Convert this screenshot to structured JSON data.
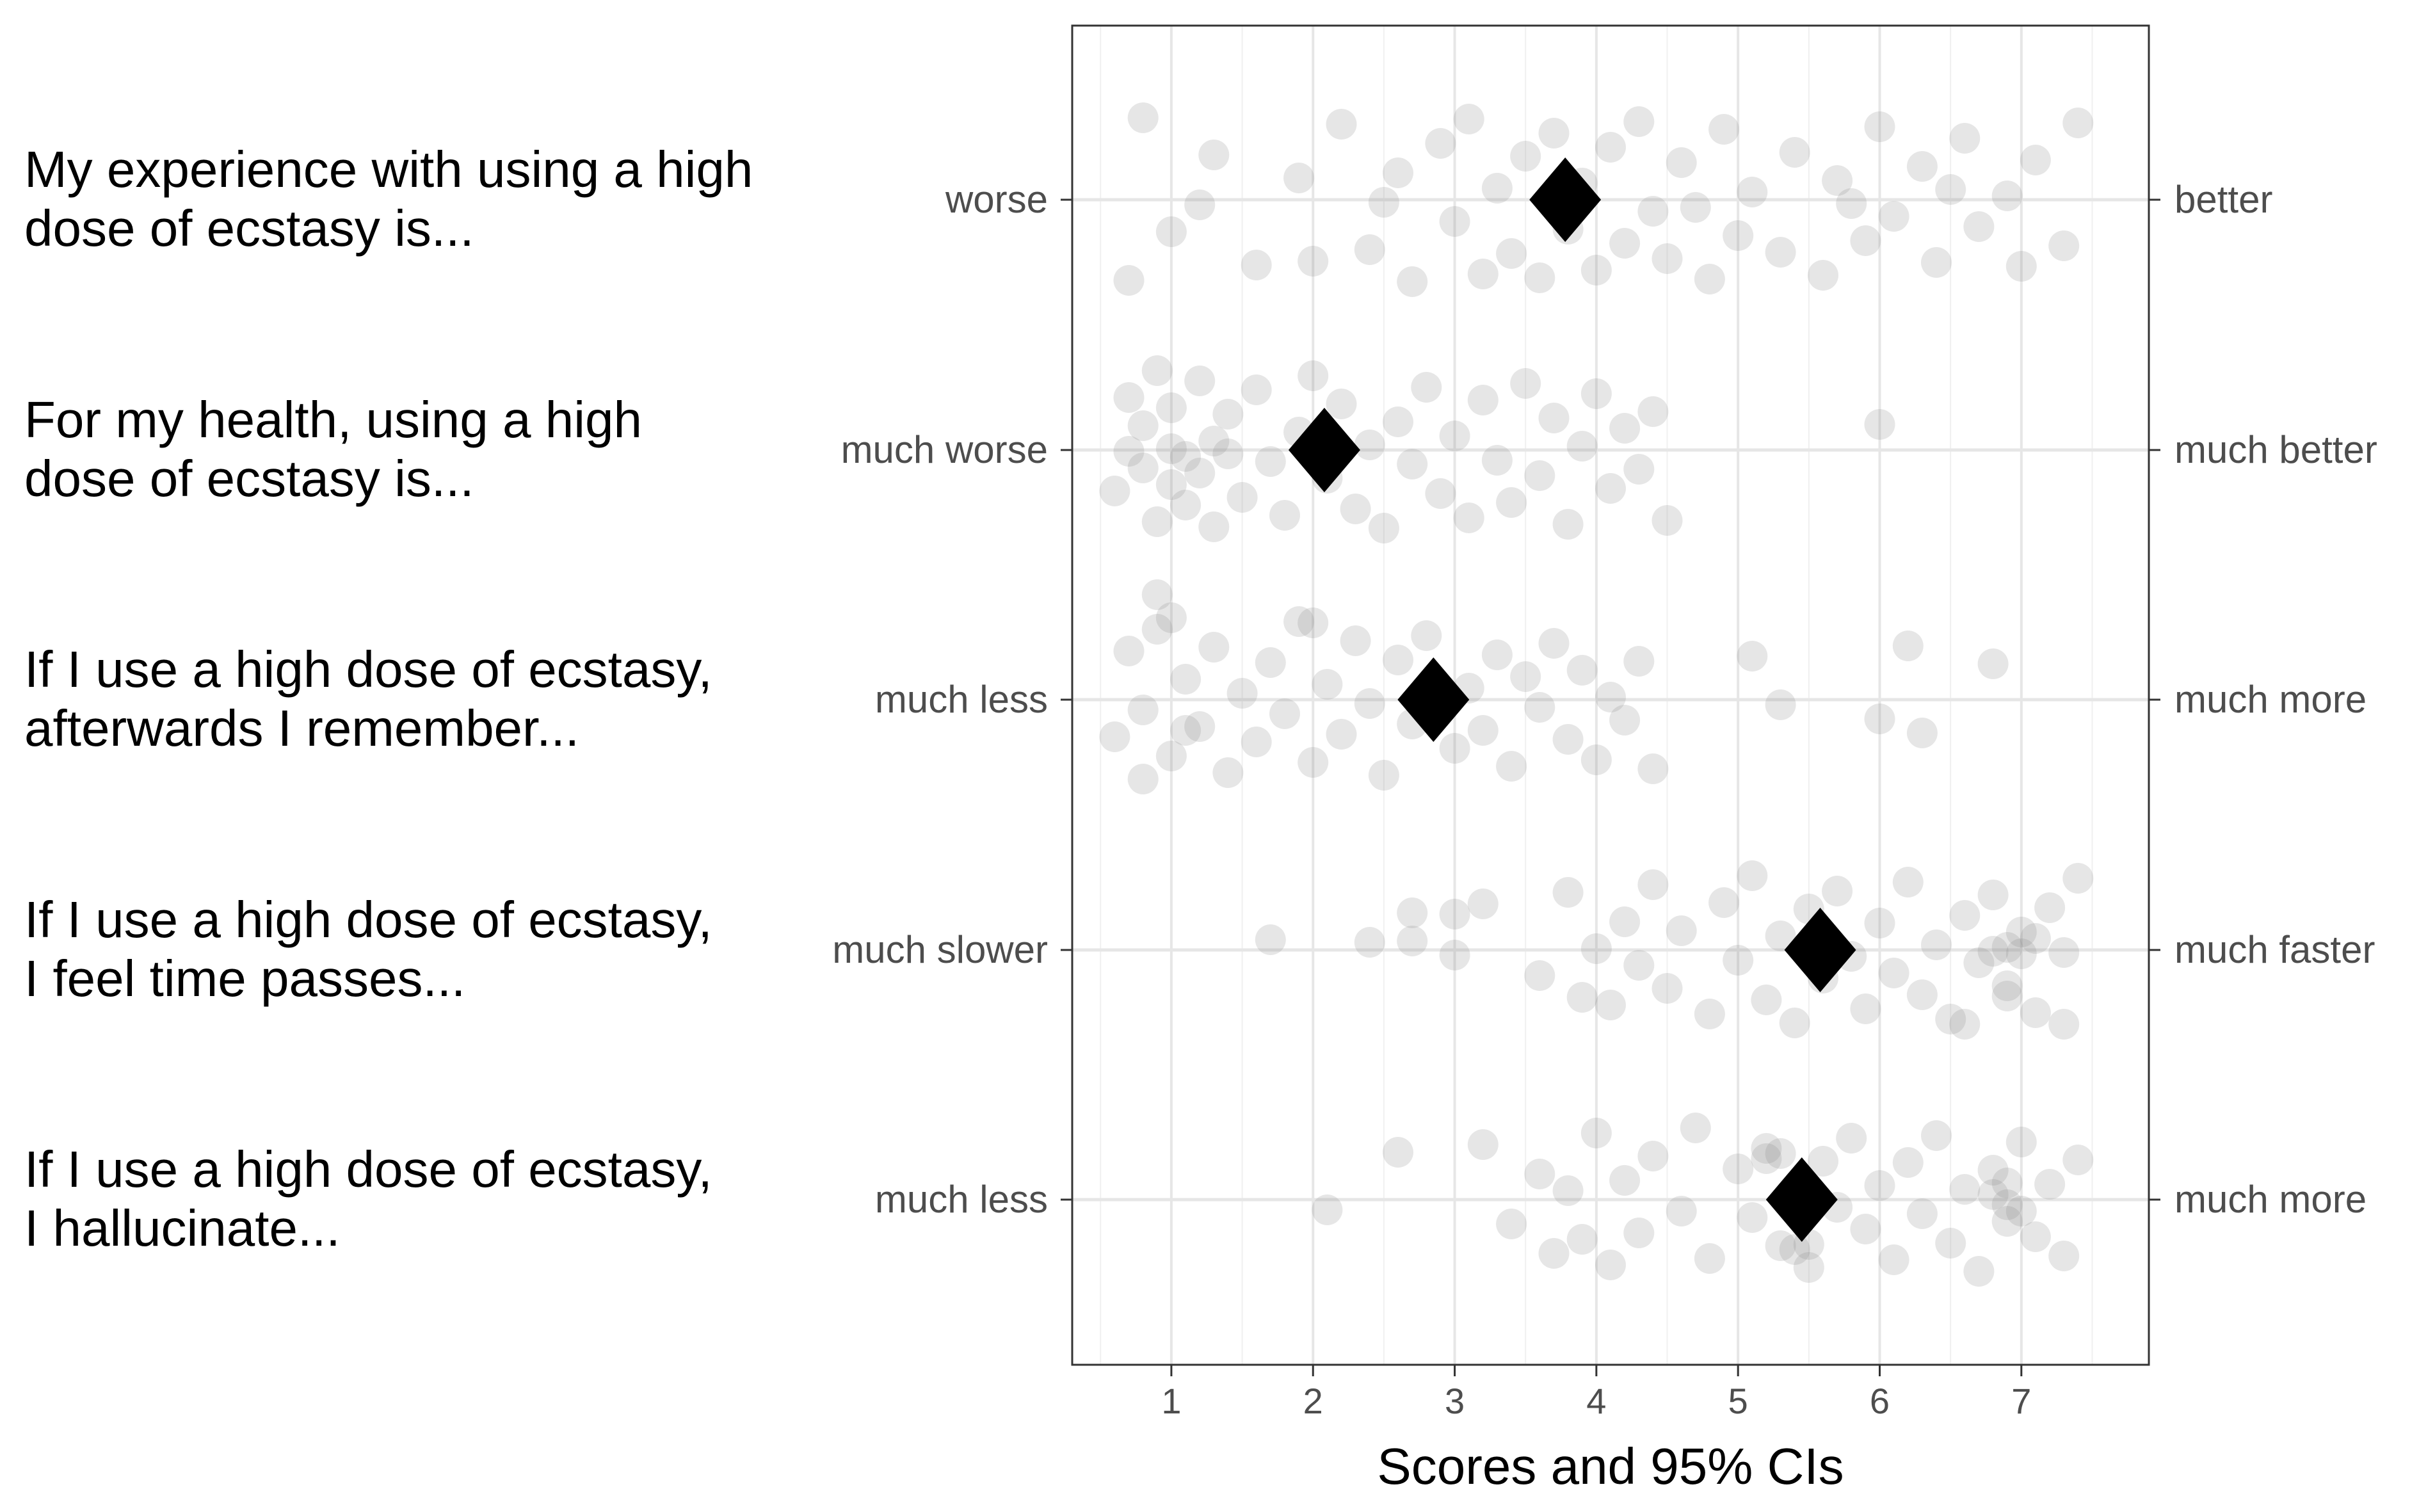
{
  "chart_data": {
    "type": "scatter",
    "xlabel": "Scores and 95% CIs",
    "xlim": [
      0.3,
      7.9
    ],
    "x_ticks": [
      1,
      2,
      3,
      4,
      5,
      6,
      7
    ],
    "grid": true,
    "point_color": "#808080",
    "diamond_color": "#000000",
    "rows": [
      {
        "question": [
          "My experience with using a high",
          "dose of ecstasy is..."
        ],
        "left_anchor": "worse",
        "right_anchor": "better",
        "mean": 3.78,
        "spread": "wide",
        "points": [
          [
            0.7,
            6.3
          ],
          [
            0.8,
            -6.4
          ],
          [
            1.0,
            2.5
          ],
          [
            1.3,
            -3.5
          ],
          [
            1.6,
            5.1
          ],
          [
            1.9,
            -1.7
          ],
          [
            2.0,
            4.8
          ],
          [
            2.2,
            -5.9
          ],
          [
            2.4,
            3.9
          ],
          [
            2.6,
            -2.1
          ],
          [
            2.7,
            6.4
          ],
          [
            2.9,
            -4.4
          ],
          [
            3.0,
            1.7
          ],
          [
            3.1,
            -6.3
          ],
          [
            3.2,
            5.8
          ],
          [
            3.3,
            -0.9
          ],
          [
            3.4,
            4.2
          ],
          [
            3.5,
            -3.4
          ],
          [
            3.6,
            6.1
          ],
          [
            3.7,
            -5.2
          ],
          [
            3.8,
            2.3
          ],
          [
            3.9,
            -1.3
          ],
          [
            4.0,
            5.5
          ],
          [
            4.1,
            -4.1
          ],
          [
            4.2,
            3.4
          ],
          [
            4.3,
            -6.1
          ],
          [
            4.4,
            0.9
          ],
          [
            4.5,
            4.6
          ],
          [
            4.6,
            -2.9
          ],
          [
            4.8,
            6.2
          ],
          [
            4.9,
            -5.5
          ],
          [
            5.0,
            2.8
          ],
          [
            5.1,
            -0.6
          ],
          [
            5.3,
            4.1
          ],
          [
            5.4,
            -3.7
          ],
          [
            5.6,
            5.9
          ],
          [
            5.7,
            -1.5
          ],
          [
            5.9,
            3.2
          ],
          [
            6.0,
            -5.7
          ],
          [
            6.1,
            1.3
          ],
          [
            6.3,
            -2.6
          ],
          [
            6.4,
            4.9
          ],
          [
            6.6,
            -4.8
          ],
          [
            6.7,
            2.1
          ],
          [
            6.9,
            -0.3
          ],
          [
            7.0,
            5.2
          ],
          [
            7.1,
            -3.1
          ],
          [
            7.3,
            3.6
          ],
          [
            7.4,
            -6.0
          ],
          [
            1.2,
            0.4
          ],
          [
            2.5,
            0.2
          ],
          [
            4.7,
            0.6
          ],
          [
            5.8,
            0.3
          ],
          [
            6.5,
            -0.8
          ]
        ]
      },
      {
        "question": [
          "For my health, using a high",
          "dose of ecstasy is..."
        ],
        "left_anchor": "much worse",
        "right_anchor": "much better",
        "mean": 2.08,
        "spread": "low",
        "points": [
          [
            0.6,
            3.2
          ],
          [
            0.7,
            -4.1
          ],
          [
            0.8,
            1.4
          ],
          [
            0.8,
            -1.9
          ],
          [
            0.9,
            5.6
          ],
          [
            0.9,
            -6.2
          ],
          [
            1.0,
            2.7
          ],
          [
            1.0,
            -3.3
          ],
          [
            1.1,
            0.5
          ],
          [
            1.1,
            4.3
          ],
          [
            1.2,
            -5.4
          ],
          [
            1.2,
            1.8
          ],
          [
            1.3,
            -0.7
          ],
          [
            1.3,
            6.0
          ],
          [
            1.4,
            -2.8
          ],
          [
            1.5,
            3.7
          ],
          [
            1.6,
            -4.7
          ],
          [
            1.7,
            0.9
          ],
          [
            1.8,
            5.1
          ],
          [
            1.9,
            -1.4
          ],
          [
            2.0,
            -5.8
          ],
          [
            2.1,
            2.2
          ],
          [
            2.2,
            -3.6
          ],
          [
            2.3,
            4.6
          ],
          [
            2.4,
            -0.4
          ],
          [
            2.5,
            6.1
          ],
          [
            2.6,
            -2.2
          ],
          [
            2.7,
            1.1
          ],
          [
            2.8,
            -4.9
          ],
          [
            2.9,
            3.4
          ],
          [
            3.0,
            -1.1
          ],
          [
            3.1,
            5.3
          ],
          [
            3.2,
            -3.9
          ],
          [
            3.3,
            0.8
          ],
          [
            3.4,
            4.1
          ],
          [
            3.5,
            -5.2
          ],
          [
            3.6,
            2.0
          ],
          [
            3.7,
            -2.5
          ],
          [
            3.8,
            5.8
          ],
          [
            3.9,
            -0.3
          ],
          [
            4.0,
            -4.4
          ],
          [
            4.1,
            3.0
          ],
          [
            4.2,
            -1.7
          ],
          [
            4.3,
            1.5
          ],
          [
            4.4,
            -3.0
          ],
          [
            4.5,
            5.5
          ],
          [
            0.7,
            0.1
          ],
          [
            1.0,
            -0.1
          ],
          [
            1.4,
            0.3
          ],
          [
            6.0,
            -2.0
          ]
        ]
      },
      {
        "question": [
          "If I use a high dose of ecstasy,",
          "afterwards I remember..."
        ],
        "left_anchor": "much less",
        "right_anchor": "much more",
        "mean": 2.85,
        "spread": "low-mid",
        "points": [
          [
            0.6,
            2.9
          ],
          [
            0.7,
            -3.8
          ],
          [
            0.8,
            0.8
          ],
          [
            0.9,
            -5.5
          ],
          [
            1.0,
            4.4
          ],
          [
            1.1,
            -1.6
          ],
          [
            1.2,
            2.1
          ],
          [
            1.3,
            -4.1
          ],
          [
            1.4,
            5.7
          ],
          [
            1.5,
            -0.5
          ],
          [
            1.6,
            3.3
          ],
          [
            1.7,
            -2.9
          ],
          [
            1.8,
            1.1
          ],
          [
            1.9,
            -6.1
          ],
          [
            2.0,
            4.9
          ],
          [
            2.1,
            -1.2
          ],
          [
            2.2,
            2.7
          ],
          [
            2.3,
            -4.6
          ],
          [
            2.4,
            0.3
          ],
          [
            2.5,
            5.9
          ],
          [
            2.6,
            -3.1
          ],
          [
            2.7,
            1.9
          ],
          [
            2.8,
            -5.0
          ],
          [
            3.0,
            3.8
          ],
          [
            3.1,
            -0.9
          ],
          [
            3.2,
            2.4
          ],
          [
            3.3,
            -3.5
          ],
          [
            3.4,
            5.2
          ],
          [
            3.5,
            -1.8
          ],
          [
            3.6,
            0.6
          ],
          [
            3.7,
            -4.4
          ],
          [
            3.8,
            3.1
          ],
          [
            3.9,
            -2.3
          ],
          [
            4.0,
            4.7
          ],
          [
            4.1,
            -0.2
          ],
          [
            4.2,
            1.6
          ],
          [
            4.3,
            -3.0
          ],
          [
            4.4,
            5.4
          ],
          [
            1.0,
            -6.4
          ],
          [
            0.9,
            -8.2
          ],
          [
            0.8,
            6.2
          ],
          [
            2.0,
            -6.0
          ],
          [
            5.1,
            -3.4
          ],
          [
            5.3,
            0.4
          ],
          [
            6.0,
            1.5
          ],
          [
            6.2,
            -4.2
          ],
          [
            6.3,
            2.6
          ],
          [
            6.8,
            -2.8
          ],
          [
            1.1,
            2.4
          ]
        ]
      },
      {
        "question": [
          "If I use a high dose of ecstasy,",
          "I feel time passes..."
        ],
        "left_anchor": "much slower",
        "right_anchor": "much faster",
        "mean": 5.58,
        "spread": "high",
        "points": [
          [
            1.7,
            -0.8
          ],
          [
            2.4,
            -0.6
          ],
          [
            2.7,
            -0.7
          ],
          [
            2.7,
            -2.9
          ],
          [
            3.0,
            -2.8
          ],
          [
            3.0,
            0.4
          ],
          [
            3.2,
            -3.6
          ],
          [
            3.6,
            2.0
          ],
          [
            3.8,
            -4.5
          ],
          [
            3.9,
            3.7
          ],
          [
            4.0,
            -0.1
          ],
          [
            4.1,
            4.3
          ],
          [
            4.2,
            -2.2
          ],
          [
            4.3,
            1.2
          ],
          [
            4.4,
            -5.1
          ],
          [
            4.5,
            3.0
          ],
          [
            4.6,
            -1.5
          ],
          [
            4.8,
            5.0
          ],
          [
            4.9,
            -3.7
          ],
          [
            5.0,
            0.8
          ],
          [
            5.1,
            -5.8
          ],
          [
            5.2,
            3.9
          ],
          [
            5.3,
            -1.1
          ],
          [
            5.4,
            5.7
          ],
          [
            5.5,
            -3.2
          ],
          [
            5.6,
            2.2
          ],
          [
            5.7,
            -4.6
          ],
          [
            5.8,
            0.5
          ],
          [
            5.9,
            4.6
          ],
          [
            6.0,
            -2.1
          ],
          [
            6.1,
            1.8
          ],
          [
            6.2,
            -5.3
          ],
          [
            6.3,
            3.5
          ],
          [
            6.4,
            -0.4
          ],
          [
            6.5,
            5.4
          ],
          [
            6.6,
            -2.7
          ],
          [
            6.7,
            1.0
          ],
          [
            6.8,
            -4.3
          ],
          [
            6.9,
            2.8
          ],
          [
            7.0,
            -1.4
          ],
          [
            7.1,
            4.9
          ],
          [
            7.2,
            -3.3
          ],
          [
            7.3,
            0.2
          ],
          [
            7.4,
            -5.6
          ],
          [
            6.8,
            0.1
          ],
          [
            6.9,
            -0.2
          ],
          [
            7.0,
            0.3
          ],
          [
            7.1,
            -0.9
          ],
          [
            6.6,
            5.8
          ],
          [
            7.3,
            5.8
          ],
          [
            6.9,
            3.6
          ]
        ]
      },
      {
        "question": [
          "If I use a high dose of ecstasy,",
          "I hallucinate..."
        ],
        "left_anchor": "much less",
        "right_anchor": "much more",
        "mean": 5.45,
        "spread": "high",
        "points": [
          [
            2.1,
            0.8
          ],
          [
            2.6,
            -3.7
          ],
          [
            3.2,
            -4.3
          ],
          [
            3.4,
            1.9
          ],
          [
            3.6,
            -2.0
          ],
          [
            3.7,
            4.2
          ],
          [
            3.8,
            -0.7
          ],
          [
            3.9,
            3.1
          ],
          [
            4.0,
            -5.2
          ],
          [
            4.1,
            5.1
          ],
          [
            4.2,
            -1.5
          ],
          [
            4.3,
            2.6
          ],
          [
            4.4,
            -3.4
          ],
          [
            4.6,
            0.9
          ],
          [
            4.7,
            -5.6
          ],
          [
            4.8,
            4.6
          ],
          [
            5.0,
            -2.4
          ],
          [
            5.1,
            1.4
          ],
          [
            5.2,
            -4.0
          ],
          [
            5.3,
            3.6
          ],
          [
            5.4,
            -0.3
          ],
          [
            5.5,
            5.3
          ],
          [
            5.6,
            -3.0
          ],
          [
            5.7,
            0.6
          ],
          [
            5.8,
            -4.8
          ],
          [
            5.9,
            2.3
          ],
          [
            6.0,
            -1.1
          ],
          [
            6.1,
            4.7
          ],
          [
            6.2,
            -2.9
          ],
          [
            6.3,
            1.1
          ],
          [
            6.4,
            -5.0
          ],
          [
            6.5,
            3.4
          ],
          [
            6.6,
            -0.8
          ],
          [
            6.7,
            5.6
          ],
          [
            6.8,
            -2.3
          ],
          [
            6.9,
            0.4
          ],
          [
            7.0,
            -4.5
          ],
          [
            7.1,
            2.9
          ],
          [
            7.2,
            -1.2
          ],
          [
            7.3,
            4.4
          ],
          [
            7.4,
            -3.1
          ],
          [
            6.9,
            1.7
          ],
          [
            7.0,
            0.9
          ],
          [
            6.8,
            -0.4
          ],
          [
            6.9,
            -1.3
          ],
          [
            5.2,
            -3.2
          ],
          [
            5.3,
            -3.6
          ],
          [
            5.4,
            3.9
          ],
          [
            5.5,
            3.5
          ]
        ]
      }
    ]
  }
}
